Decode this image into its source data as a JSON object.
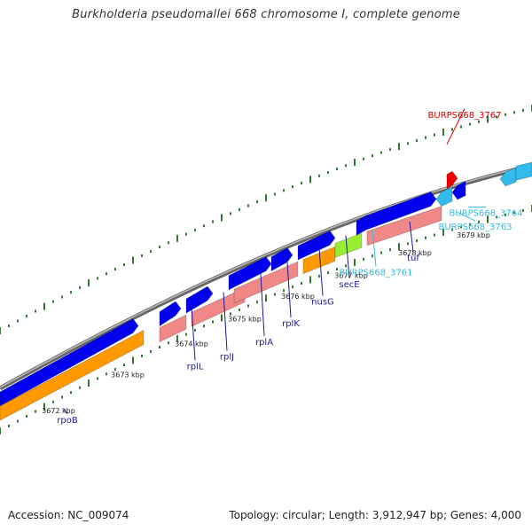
{
  "title": "Burkholderia pseudomallei 668 chromosome I, complete genome",
  "accession": "Accession: NC_009074",
  "summary": "Topology: circular; Length: 3,912,947 bp; Genes: 4,000",
  "colors": {
    "backbone": "#888888",
    "cds": "#0000ee",
    "rna_pink": "#f08888",
    "orange": "#ff9900",
    "green": "#99ee33",
    "highlight_red": "#ee0000",
    "light_blue": "#33bbee",
    "navy_label": "#1a1a99",
    "cyan_label": "#33bbdd",
    "red_label": "#dd0000",
    "tick_green": "#337733"
  },
  "ticks": [
    {
      "label": "3672 kbp"
    },
    {
      "label": "3673 kbp"
    },
    {
      "label": "3674 kbp"
    },
    {
      "label": "3675 kbp"
    },
    {
      "label": "3676 kbp"
    },
    {
      "label": "3677 kbp"
    },
    {
      "label": "3678 kbp"
    },
    {
      "label": "3679 kbp"
    }
  ],
  "gene_labels": [
    {
      "name": "rpoB",
      "color": "navy_label"
    },
    {
      "name": "rplL",
      "color": "navy_label"
    },
    {
      "name": "rplJ",
      "color": "navy_label"
    },
    {
      "name": "rplA",
      "color": "navy_label"
    },
    {
      "name": "rplK",
      "color": "navy_label"
    },
    {
      "name": "nusG",
      "color": "navy_label"
    },
    {
      "name": "secE",
      "color": "navy_label"
    },
    {
      "name": "BURPS668_3761",
      "color": "cyan_label"
    },
    {
      "name": "tuf",
      "color": "navy_label"
    },
    {
      "name": "BURPS668_3763",
      "color": "cyan_label"
    },
    {
      "name": "BURPS668_3764",
      "color": "cyan_label"
    },
    {
      "name": "BURPS668_3767",
      "color": "red_label"
    }
  ]
}
